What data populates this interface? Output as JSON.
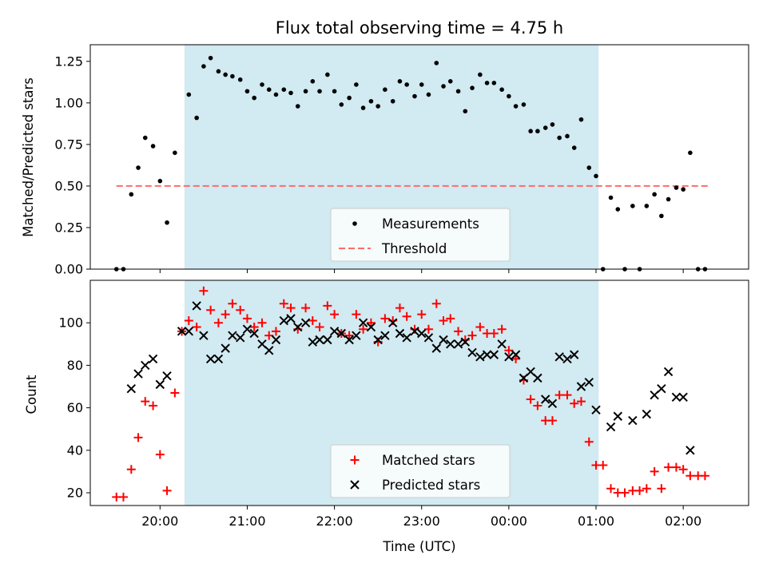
{
  "chart_data": [
    {
      "type": "scatter",
      "title": "Flux total observing time = 4.75 h",
      "xlabel": "",
      "ylabel": "Matched/Predicted stars",
      "x_unit": "hours since 19:00 UTC",
      "xlim": [
        19.2,
        26.75
      ],
      "ylim": [
        0.0,
        1.35
      ],
      "yticks": [
        0.0,
        0.25,
        0.5,
        0.75,
        1.0,
        1.25
      ],
      "ytick_labels": [
        "0.00",
        "0.25",
        "0.50",
        "0.75",
        "1.00",
        "1.25"
      ],
      "xticks": [
        20,
        21,
        22,
        23,
        24,
        25,
        26
      ],
      "show_xtick_labels": false,
      "observing_window": [
        20.28,
        25.03
      ],
      "span_color": "#add8e6",
      "threshold": {
        "name": "Threshold",
        "value": 0.5,
        "x_range": [
          19.5,
          26.3
        ],
        "color": "#ff6b6b"
      },
      "series": [
        {
          "name": "Measurements",
          "color": "#000000",
          "marker": "dot",
          "points": [
            [
              19.5,
              0.0
            ],
            [
              19.58,
              0.0
            ],
            [
              19.67,
              0.45
            ],
            [
              19.75,
              0.61
            ],
            [
              19.83,
              0.79
            ],
            [
              19.92,
              0.74
            ],
            [
              20.0,
              0.53
            ],
            [
              20.08,
              0.28
            ],
            [
              20.17,
              0.7
            ],
            [
              20.33,
              1.05
            ],
            [
              20.42,
              0.91
            ],
            [
              20.5,
              1.22
            ],
            [
              20.58,
              1.27
            ],
            [
              20.67,
              1.19
            ],
            [
              20.75,
              1.17
            ],
            [
              20.83,
              1.16
            ],
            [
              20.92,
              1.14
            ],
            [
              21.0,
              1.07
            ],
            [
              21.08,
              1.03
            ],
            [
              21.17,
              1.11
            ],
            [
              21.25,
              1.08
            ],
            [
              21.33,
              1.05
            ],
            [
              21.42,
              1.08
            ],
            [
              21.5,
              1.06
            ],
            [
              21.58,
              0.98
            ],
            [
              21.67,
              1.07
            ],
            [
              21.75,
              1.13
            ],
            [
              21.83,
              1.07
            ],
            [
              21.92,
              1.17
            ],
            [
              22.0,
              1.07
            ],
            [
              22.08,
              0.99
            ],
            [
              22.17,
              1.03
            ],
            [
              22.25,
              1.11
            ],
            [
              22.33,
              0.97
            ],
            [
              22.42,
              1.01
            ],
            [
              22.5,
              0.98
            ],
            [
              22.58,
              1.08
            ],
            [
              22.67,
              1.01
            ],
            [
              22.75,
              1.13
            ],
            [
              22.83,
              1.11
            ],
            [
              22.92,
              1.04
            ],
            [
              23.0,
              1.11
            ],
            [
              23.08,
              1.05
            ],
            [
              23.17,
              1.24
            ],
            [
              23.25,
              1.1
            ],
            [
              23.33,
              1.13
            ],
            [
              23.42,
              1.07
            ],
            [
              23.5,
              0.95
            ],
            [
              23.58,
              1.09
            ],
            [
              23.67,
              1.17
            ],
            [
              23.75,
              1.12
            ],
            [
              23.83,
              1.12
            ],
            [
              23.92,
              1.08
            ],
            [
              24.0,
              1.04
            ],
            [
              24.08,
              0.98
            ],
            [
              24.17,
              0.99
            ],
            [
              24.25,
              0.83
            ],
            [
              24.33,
              0.83
            ],
            [
              24.42,
              0.85
            ],
            [
              24.5,
              0.87
            ],
            [
              24.58,
              0.79
            ],
            [
              24.67,
              0.8
            ],
            [
              24.75,
              0.73
            ],
            [
              24.83,
              0.9
            ],
            [
              24.92,
              0.61
            ],
            [
              25.0,
              0.56
            ],
            [
              25.08,
              0.0
            ],
            [
              25.17,
              0.43
            ],
            [
              25.25,
              0.36
            ],
            [
              25.33,
              0.0
            ],
            [
              25.42,
              0.38
            ],
            [
              25.5,
              0.0
            ],
            [
              25.58,
              0.38
            ],
            [
              25.67,
              0.45
            ],
            [
              25.75,
              0.32
            ],
            [
              25.83,
              0.42
            ],
            [
              25.92,
              0.49
            ],
            [
              26.0,
              0.48
            ],
            [
              26.08,
              0.7
            ],
            [
              26.17,
              0.0
            ],
            [
              26.25,
              0.0
            ]
          ]
        }
      ],
      "legend": {
        "entries": [
          "Measurements",
          "Threshold"
        ],
        "position": "lower center"
      }
    },
    {
      "type": "scatter",
      "title": "",
      "xlabel": "Time (UTC)",
      "ylabel": "Count",
      "x_unit": "hours since 19:00 UTC",
      "xlim": [
        19.2,
        26.75
      ],
      "ylim": [
        14,
        120
      ],
      "yticks": [
        20,
        40,
        60,
        80,
        100
      ],
      "ytick_labels": [
        "20",
        "40",
        "60",
        "80",
        "100"
      ],
      "xticks": [
        20,
        21,
        22,
        23,
        24,
        25,
        26
      ],
      "xtick_labels": [
        "20:00",
        "21:00",
        "22:00",
        "23:00",
        "00:00",
        "01:00",
        "02:00"
      ],
      "observing_window": [
        20.28,
        25.03
      ],
      "span_color": "#add8e6",
      "series": [
        {
          "name": "Matched stars",
          "color": "#ff0000",
          "marker": "plus",
          "points": [
            [
              19.5,
              18
            ],
            [
              19.58,
              18
            ],
            [
              19.67,
              31
            ],
            [
              19.75,
              46
            ],
            [
              19.83,
              63
            ],
            [
              19.92,
              61
            ],
            [
              20.0,
              38
            ],
            [
              20.08,
              21
            ],
            [
              20.17,
              67
            ],
            [
              20.25,
              96
            ],
            [
              20.33,
              101
            ],
            [
              20.42,
              98
            ],
            [
              20.5,
              115
            ],
            [
              20.58,
              106
            ],
            [
              20.67,
              100
            ],
            [
              20.75,
              104
            ],
            [
              20.83,
              109
            ],
            [
              20.92,
              106
            ],
            [
              21.0,
              102
            ],
            [
              21.08,
              98
            ],
            [
              21.17,
              100
            ],
            [
              21.25,
              94
            ],
            [
              21.33,
              96
            ],
            [
              21.42,
              109
            ],
            [
              21.5,
              107
            ],
            [
              21.58,
              97
            ],
            [
              21.67,
              107
            ],
            [
              21.75,
              101
            ],
            [
              21.83,
              98
            ],
            [
              21.92,
              108
            ],
            [
              22.0,
              104
            ],
            [
              22.08,
              95
            ],
            [
              22.17,
              94
            ],
            [
              22.25,
              104
            ],
            [
              22.33,
              97
            ],
            [
              22.42,
              100
            ],
            [
              22.5,
              91
            ],
            [
              22.58,
              102
            ],
            [
              22.67,
              101
            ],
            [
              22.75,
              107
            ],
            [
              22.83,
              103
            ],
            [
              22.92,
              97
            ],
            [
              23.0,
              104
            ],
            [
              23.08,
              97
            ],
            [
              23.17,
              109
            ],
            [
              23.25,
              101
            ],
            [
              23.33,
              102
            ],
            [
              23.42,
              96
            ],
            [
              23.5,
              92
            ],
            [
              23.58,
              94
            ],
            [
              23.67,
              98
            ],
            [
              23.75,
              95
            ],
            [
              23.83,
              95
            ],
            [
              23.92,
              97
            ],
            [
              24.0,
              87
            ],
            [
              24.08,
              83
            ],
            [
              24.17,
              73
            ],
            [
              24.25,
              64
            ],
            [
              24.33,
              61
            ],
            [
              24.42,
              54
            ],
            [
              24.5,
              54
            ],
            [
              24.58,
              66
            ],
            [
              24.67,
              66
            ],
            [
              24.75,
              62
            ],
            [
              24.83,
              63
            ],
            [
              24.92,
              44
            ],
            [
              25.0,
              33
            ],
            [
              25.08,
              33
            ],
            [
              25.17,
              22
            ],
            [
              25.25,
              20
            ],
            [
              25.33,
              20
            ],
            [
              25.42,
              21
            ],
            [
              25.5,
              21
            ],
            [
              25.58,
              22
            ],
            [
              25.67,
              30
            ],
            [
              25.75,
              22
            ],
            [
              25.83,
              32
            ],
            [
              25.92,
              32
            ],
            [
              26.0,
              31
            ],
            [
              26.08,
              28
            ],
            [
              26.17,
              28
            ],
            [
              26.25,
              28
            ]
          ]
        },
        {
          "name": "Predicted stars",
          "color": "#000000",
          "marker": "x",
          "points": [
            [
              19.67,
              69
            ],
            [
              19.75,
              76
            ],
            [
              19.83,
              80
            ],
            [
              19.92,
              83
            ],
            [
              20.0,
              71
            ],
            [
              20.08,
              75
            ],
            [
              20.25,
              96
            ],
            [
              20.33,
              96
            ],
            [
              20.42,
              108
            ],
            [
              20.5,
              94
            ],
            [
              20.58,
              83
            ],
            [
              20.67,
              83
            ],
            [
              20.75,
              88
            ],
            [
              20.83,
              94
            ],
            [
              20.92,
              93
            ],
            [
              21.0,
              97
            ],
            [
              21.08,
              95
            ],
            [
              21.17,
              90
            ],
            [
              21.25,
              87
            ],
            [
              21.33,
              92
            ],
            [
              21.42,
              101
            ],
            [
              21.5,
              102
            ],
            [
              21.58,
              98
            ],
            [
              21.67,
              100
            ],
            [
              21.75,
              91
            ],
            [
              21.83,
              92
            ],
            [
              21.92,
              92
            ],
            [
              22.0,
              96
            ],
            [
              22.08,
              95
            ],
            [
              22.17,
              92
            ],
            [
              22.25,
              94
            ],
            [
              22.33,
              100
            ],
            [
              22.42,
              98
            ],
            [
              22.5,
              92
            ],
            [
              22.58,
              94
            ],
            [
              22.67,
              100
            ],
            [
              22.75,
              95
            ],
            [
              22.83,
              93
            ],
            [
              22.92,
              96
            ],
            [
              23.0,
              95
            ],
            [
              23.08,
              93
            ],
            [
              23.17,
              88
            ],
            [
              23.25,
              92
            ],
            [
              23.33,
              90
            ],
            [
              23.42,
              90
            ],
            [
              23.5,
              91
            ],
            [
              23.58,
              86
            ],
            [
              23.67,
              84
            ],
            [
              23.75,
              85
            ],
            [
              23.83,
              85
            ],
            [
              23.92,
              90
            ],
            [
              24.0,
              84
            ],
            [
              24.08,
              85
            ],
            [
              24.17,
              74
            ],
            [
              24.25,
              77
            ],
            [
              24.33,
              74
            ],
            [
              24.42,
              64
            ],
            [
              24.5,
              62
            ],
            [
              24.58,
              84
            ],
            [
              24.67,
              83
            ],
            [
              24.75,
              85
            ],
            [
              24.83,
              70
            ],
            [
              24.92,
              72
            ],
            [
              25.0,
              59
            ],
            [
              25.17,
              51
            ],
            [
              25.25,
              56
            ],
            [
              25.42,
              54
            ],
            [
              25.58,
              57
            ],
            [
              25.67,
              66
            ],
            [
              25.75,
              69
            ],
            [
              25.83,
              77
            ],
            [
              25.92,
              65
            ],
            [
              26.0,
              65
            ],
            [
              26.08,
              40
            ]
          ]
        }
      ],
      "legend": {
        "entries": [
          "Matched stars",
          "Predicted stars"
        ],
        "position": "lower center"
      }
    }
  ]
}
